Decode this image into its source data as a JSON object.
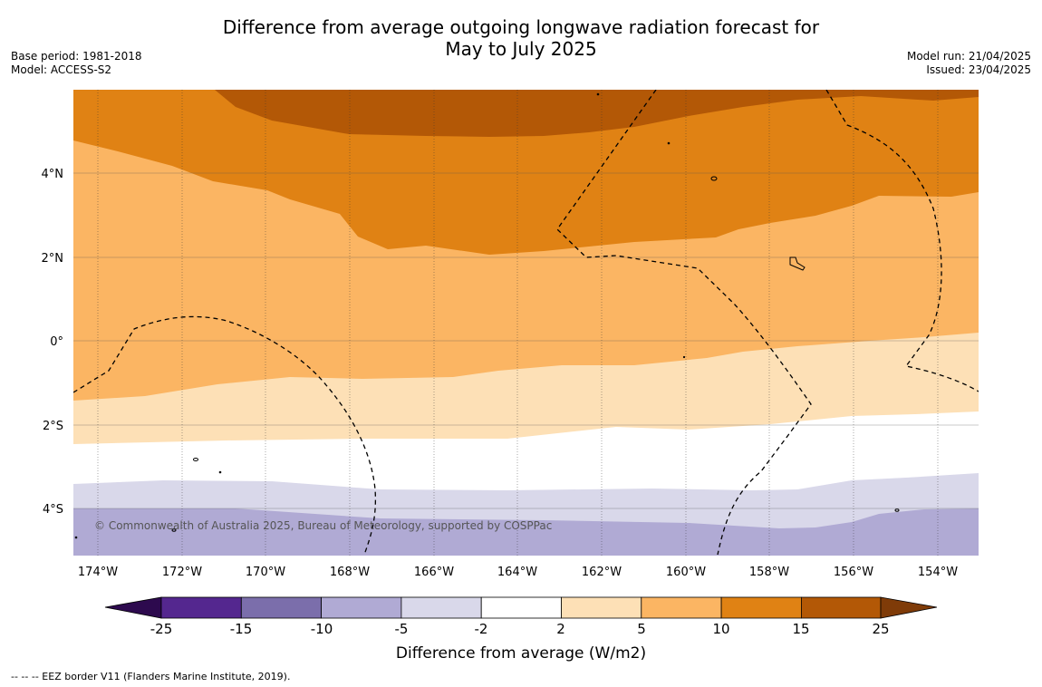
{
  "title_line1": "Difference from average outgoing longwave radiation forecast for",
  "title_line2": "May to July 2025",
  "meta": {
    "base_period": "Base period: 1981-2018",
    "model": "Model: ACCESS-S2",
    "model_run": "Model run: 21/04/2025",
    "issued": "Issued: 23/04/2025"
  },
  "copyright": "© Commonwealth of Australia 2025, Bureau of Meteorology, supported by COSPPac",
  "lon_labels": [
    "174°W",
    "172°W",
    "170°W",
    "168°W",
    "166°W",
    "164°W",
    "162°W",
    "160°W",
    "158°W",
    "156°W",
    "154°W"
  ],
  "lat_labels": [
    "4°N",
    "2°N",
    "0°",
    "2°S",
    "4°S"
  ],
  "colorbar": {
    "title": "Difference from average (W/m2)",
    "tick_labels": [
      "-25",
      "-15",
      "-10",
      "-5",
      "-2",
      "2",
      "5",
      "10",
      "15",
      "25"
    ],
    "colors": [
      "#2d0a4e",
      "#54278f",
      "#7b6eab",
      "#b0aad4",
      "#d9d8ea",
      "#ffffff",
      "#fde0b6",
      "#fbb563",
      "#e08214",
      "#b35806",
      "#7f3b08"
    ]
  },
  "footnote": "--  --  -- EEZ border V11 (Flanders Marine Institute, 2019)."
}
